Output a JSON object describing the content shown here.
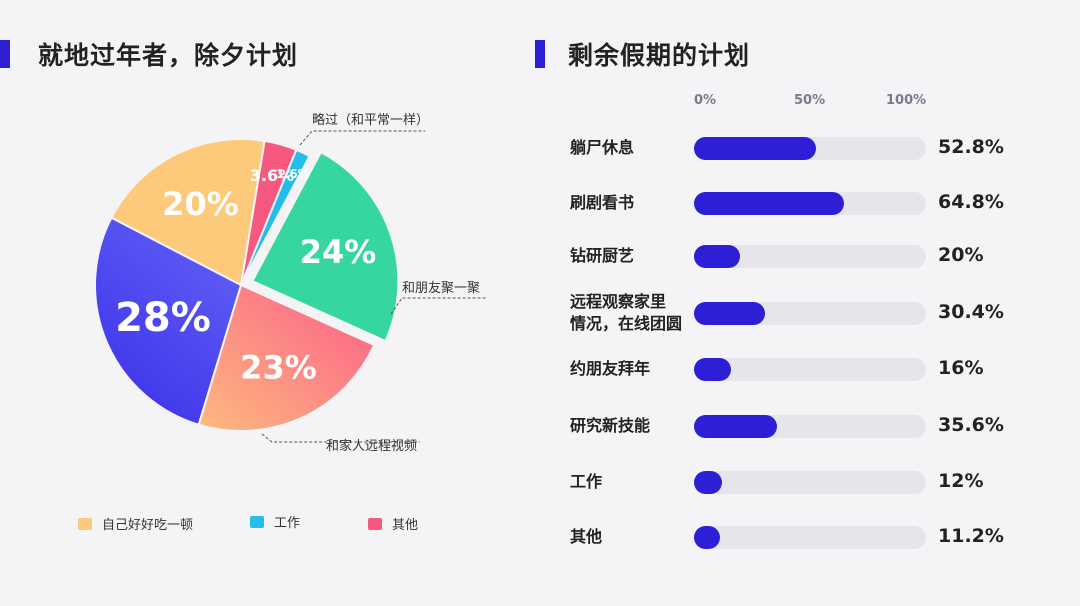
{
  "colors": {
    "accent": "#2d1fd6",
    "bar_track": "#e6e5ec"
  },
  "left": {
    "title": "就地过年者，除夕计划"
  },
  "right": {
    "title": "剩余假期的计划"
  },
  "chart_data": [
    {
      "type": "pie",
      "title": "就地过年者，除夕计划",
      "slices": [
        {
          "label": "略过（和平常一样）",
          "value": 24,
          "display": "24%",
          "color": "#35d6a0"
        },
        {
          "label": "和朋友聚一聚",
          "value": 23,
          "display": "23%",
          "color": "#fb6f86"
        },
        {
          "label": "和家人远程视频",
          "value": 28,
          "display": "28%",
          "color": "#4b3ef0"
        },
        {
          "label": "自己好好吃一顿",
          "value": 20,
          "display": "20%",
          "color": "#fdc97a"
        },
        {
          "label": "其他",
          "value": 3.6,
          "display": "3.6%",
          "color": "#f7587f"
        },
        {
          "label": "工作",
          "value": 1.6,
          "display": "1.6%",
          "color": "#22bde8"
        }
      ],
      "legend": [
        {
          "label": "自己好好吃一顿",
          "color": "#fdc97a"
        },
        {
          "label": "工作",
          "color": "#22bde8"
        },
        {
          "label": "其他",
          "color": "#f7587f"
        }
      ]
    },
    {
      "type": "bar",
      "orientation": "horizontal",
      "title": "剩余假期的计划",
      "ticks": [
        "0%",
        "50%",
        "100%"
      ],
      "xlim": [
        0,
        100
      ],
      "categories": [
        "躺尸休息",
        "刷剧看书",
        "钻研厨艺",
        "远程观察家里情况，在线团圆",
        "约朋友拜年",
        "研究新技能",
        "工作",
        "其他"
      ],
      "category_lines": [
        [
          "躺尸休息"
        ],
        [
          "刷剧看书"
        ],
        [
          "钻研厨艺"
        ],
        [
          "远程观察家里",
          "情况，在线团圆"
        ],
        [
          "约朋友拜年"
        ],
        [
          "研究新技能"
        ],
        [
          "工作"
        ],
        [
          "其他"
        ]
      ],
      "values": [
        52.8,
        64.8,
        20,
        30.4,
        16,
        35.6,
        12,
        11.2
      ],
      "value_labels": [
        "52.8%",
        "64.8%",
        "20%",
        "30.4%",
        "16%",
        "35.6%",
        "12%",
        "11.2%"
      ]
    }
  ]
}
